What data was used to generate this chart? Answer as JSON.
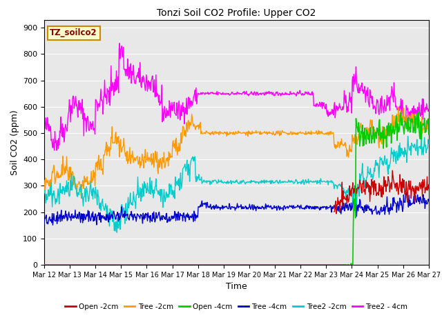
{
  "title": "Tonzi Soil CO2 Profile: Upper CO2",
  "xlabel": "Time",
  "ylabel": "Soil CO2 (ppm)",
  "ylim": [
    0,
    930
  ],
  "yticks": [
    0,
    100,
    200,
    300,
    400,
    500,
    600,
    700,
    800,
    900
  ],
  "label_box": "TZ_soilco2",
  "background_color": "#e8e8e8",
  "plot_bg": "#e8e8e8",
  "grid_color": "#ffffff",
  "series": {
    "Open_2cm": {
      "color": "#cc0000",
      "label": "Open -2cm"
    },
    "Tree_2cm": {
      "color": "#ff9900",
      "label": "Tree -2cm"
    },
    "Open_4cm": {
      "color": "#00cc00",
      "label": "Open -4cm"
    },
    "Tree_4cm": {
      "color": "#0000cc",
      "label": "Tree -4cm"
    },
    "Tree2_2cm": {
      "color": "#00cccc",
      "label": "Tree2 -2cm"
    },
    "Tree2_4cm": {
      "color": "#ff00ff",
      "label": "Tree2 - 4cm"
    }
  },
  "x_ticks": [
    12,
    13,
    14,
    15,
    16,
    17,
    18,
    19,
    20,
    21,
    22,
    23,
    24,
    25,
    26,
    27
  ],
  "x_tick_labels": [
    "Mar 12",
    "Mar 13",
    "Mar 14",
    "Mar 15",
    "Mar 16",
    "Mar 17",
    "Mar 18",
    "Mar 19",
    "Mar 20",
    "Mar 21",
    "Mar 22",
    "Mar 23",
    "Mar 24",
    "Mar 25",
    "Mar 26",
    "Mar 27"
  ]
}
